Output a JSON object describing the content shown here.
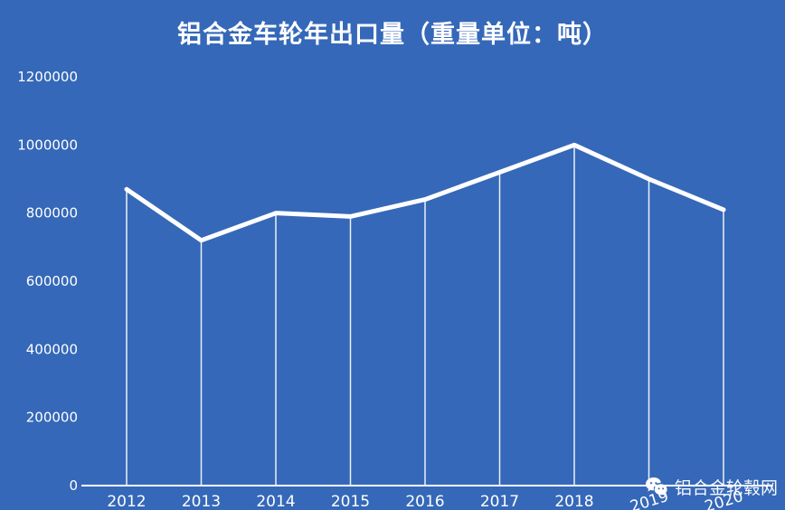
{
  "title": "铝合金车轮年出口量（重量单位：吨）",
  "watermark": {
    "label": "铝合金轮毂网",
    "icon": "wechat-icon"
  },
  "colors": {
    "background": "#3568b8",
    "line": "#ffffff",
    "text": "#ffffff"
  },
  "chart_data": {
    "type": "line",
    "title": "铝合金车轮年出口量（重量单位：吨）",
    "categories": [
      "2012",
      "2013",
      "2014",
      "2015",
      "2016",
      "2017",
      "2018",
      "2019",
      "2020"
    ],
    "values": [
      870000,
      720000,
      800000,
      790000,
      840000,
      920000,
      1000000,
      900000,
      810000
    ],
    "xlabel": "",
    "ylabel": "",
    "ylim": [
      0,
      1200000
    ],
    "ytick_interval": 200000,
    "ytick_labels": [
      "0",
      "200000",
      "400000",
      "600000",
      "800000",
      "1000000",
      "1200000"
    ],
    "grid": false,
    "legend": "none",
    "drop_lines": true,
    "line_color": "#ffffff",
    "background_color": "#3568b8"
  }
}
